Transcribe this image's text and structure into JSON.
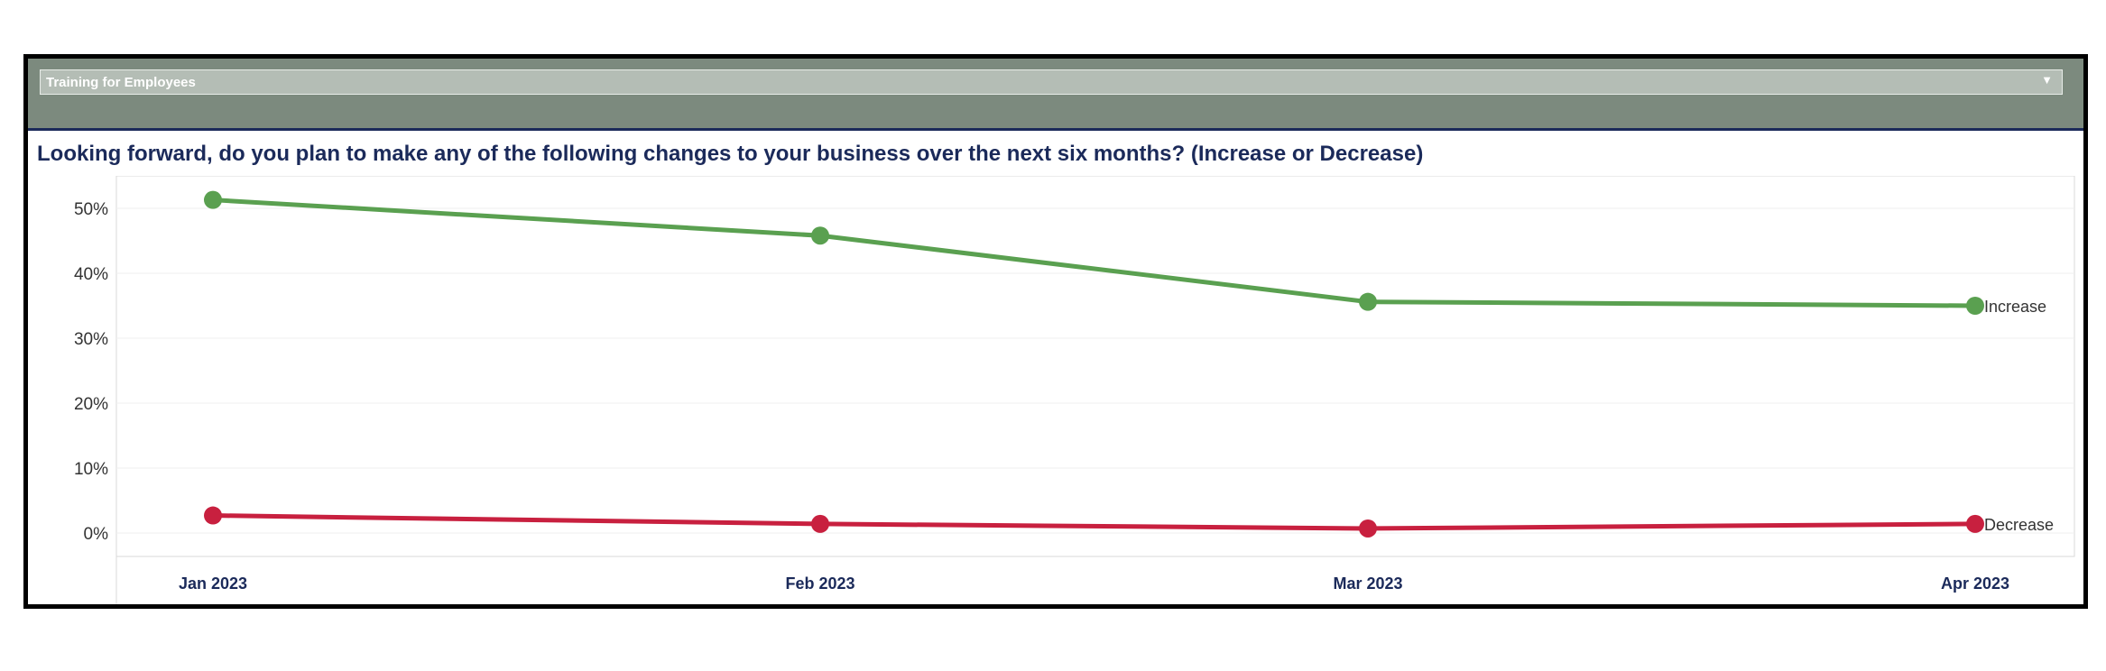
{
  "filter": {
    "selected": "Training for Employees",
    "arrow": "▼"
  },
  "chart_data": {
    "type": "line",
    "title": "Looking forward, do you plan to make any of the following changes to your business over the next six months? (Increase or Decrease)",
    "categories": [
      "Jan 2023",
      "Feb 2023",
      "Mar 2023",
      "Apr 2023"
    ],
    "y_ticks": [
      "0%",
      "10%",
      "20%",
      "30%",
      "40%",
      "50%"
    ],
    "ylim": [
      0,
      52
    ],
    "grid": true,
    "legend": "inline labels at line ends",
    "series": [
      {
        "name": "Increase",
        "color": "#5aa050",
        "values": [
          51.3,
          45.8,
          35.6,
          35.0
        ]
      },
      {
        "name": "Decrease",
        "color": "#c8203f",
        "values": [
          2.7,
          1.4,
          0.7,
          1.4
        ]
      }
    ]
  }
}
